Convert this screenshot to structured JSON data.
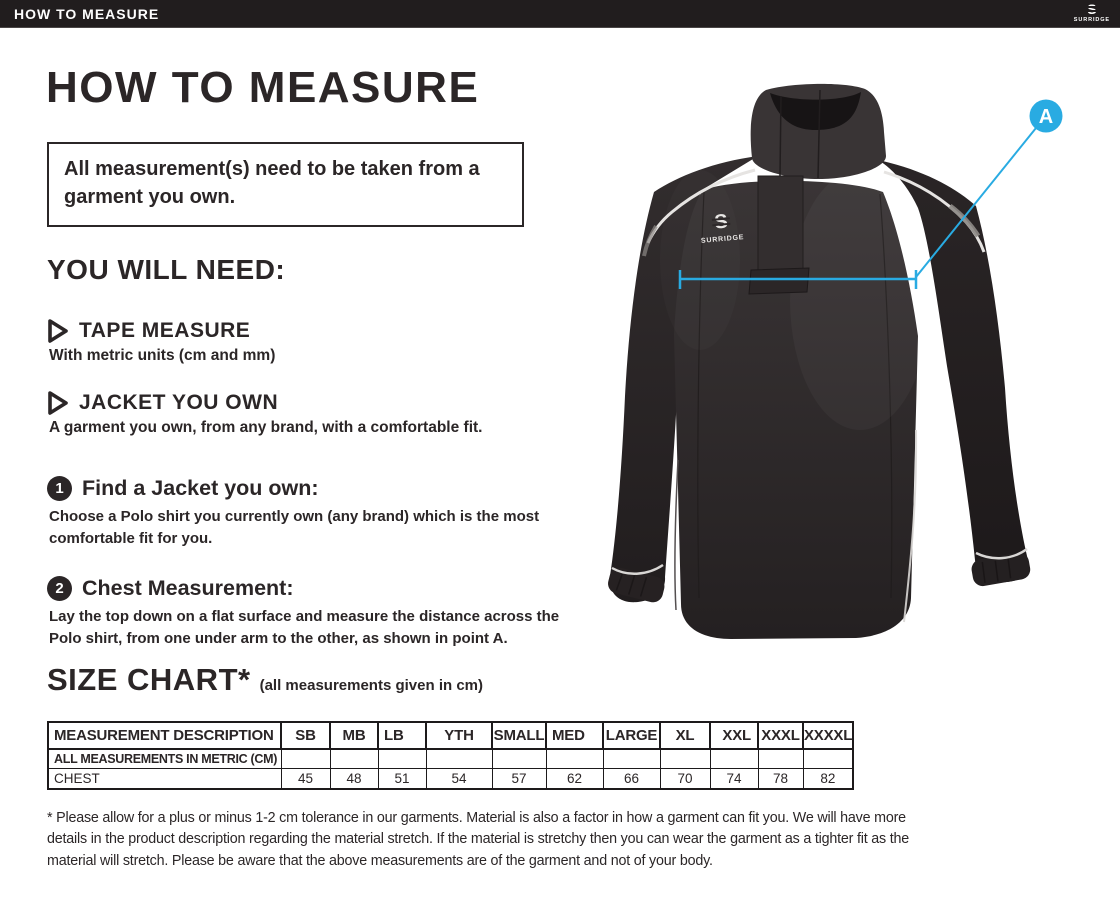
{
  "topbar": {
    "title": "HOW TO MEASURE",
    "brand": "SURRIDGE"
  },
  "page": {
    "title": "HOW TO MEASURE",
    "notice": "All measurement(s) need to be taken from a garment you own.",
    "you_will_need": {
      "heading": "YOU WILL NEED:",
      "items": [
        {
          "label": "TAPE MEASURE",
          "description": "With metric units (cm and mm)"
        },
        {
          "label": "JACKET YOU OWN",
          "description": "A garment you own, from any brand, with a comfortable fit."
        }
      ]
    },
    "steps": [
      {
        "number": "1",
        "title": "Find a Jacket you own:",
        "description": "Choose a Polo shirt you currently own (any brand) which is the most comfortable fit for you."
      },
      {
        "number": "2",
        "title": "Chest Measurement:",
        "description": "Lay the top down on a flat surface and measure the distance across the Polo shirt, from one under arm to the other, as shown in point A."
      }
    ],
    "size_chart": {
      "heading": "SIZE CHART*",
      "subheading": "(all measurements given in cm)",
      "table": {
        "header": [
          "MEASUREMENT DESCRIPTION",
          "SB",
          "MB",
          "LB",
          "YTH",
          "SMALL",
          "MED",
          "LARGE",
          "XL",
          "XXL",
          "XXXL",
          "XXXXL"
        ],
        "rows": [
          {
            "label": "ALL MEASUREMENTS IN METRIC (CM)",
            "values": [
              "",
              "",
              "",
              "",
              "",
              "",
              "",
              "",
              "",
              "",
              ""
            ]
          },
          {
            "label": "CHEST",
            "values": [
              "45",
              "48",
              "51",
              "54",
              "57",
              "62",
              "66",
              "70",
              "74",
              "78",
              "82"
            ]
          }
        ]
      },
      "footnote": "* Please allow for a plus or minus 1-2 cm tolerance in our garments. Material is also a factor in how a garment can fit you. We will have more details in the product description regarding the material stretch.  If the material is stretchy then you can wear the garment as a tighter fit as the material will stretch.  Please be aware that the above measurements are of the garment and not of your body."
    },
    "diagram": {
      "point_label": "A",
      "garment_logo": "SURRIDGE",
      "accent_color": "#29abe2"
    }
  }
}
